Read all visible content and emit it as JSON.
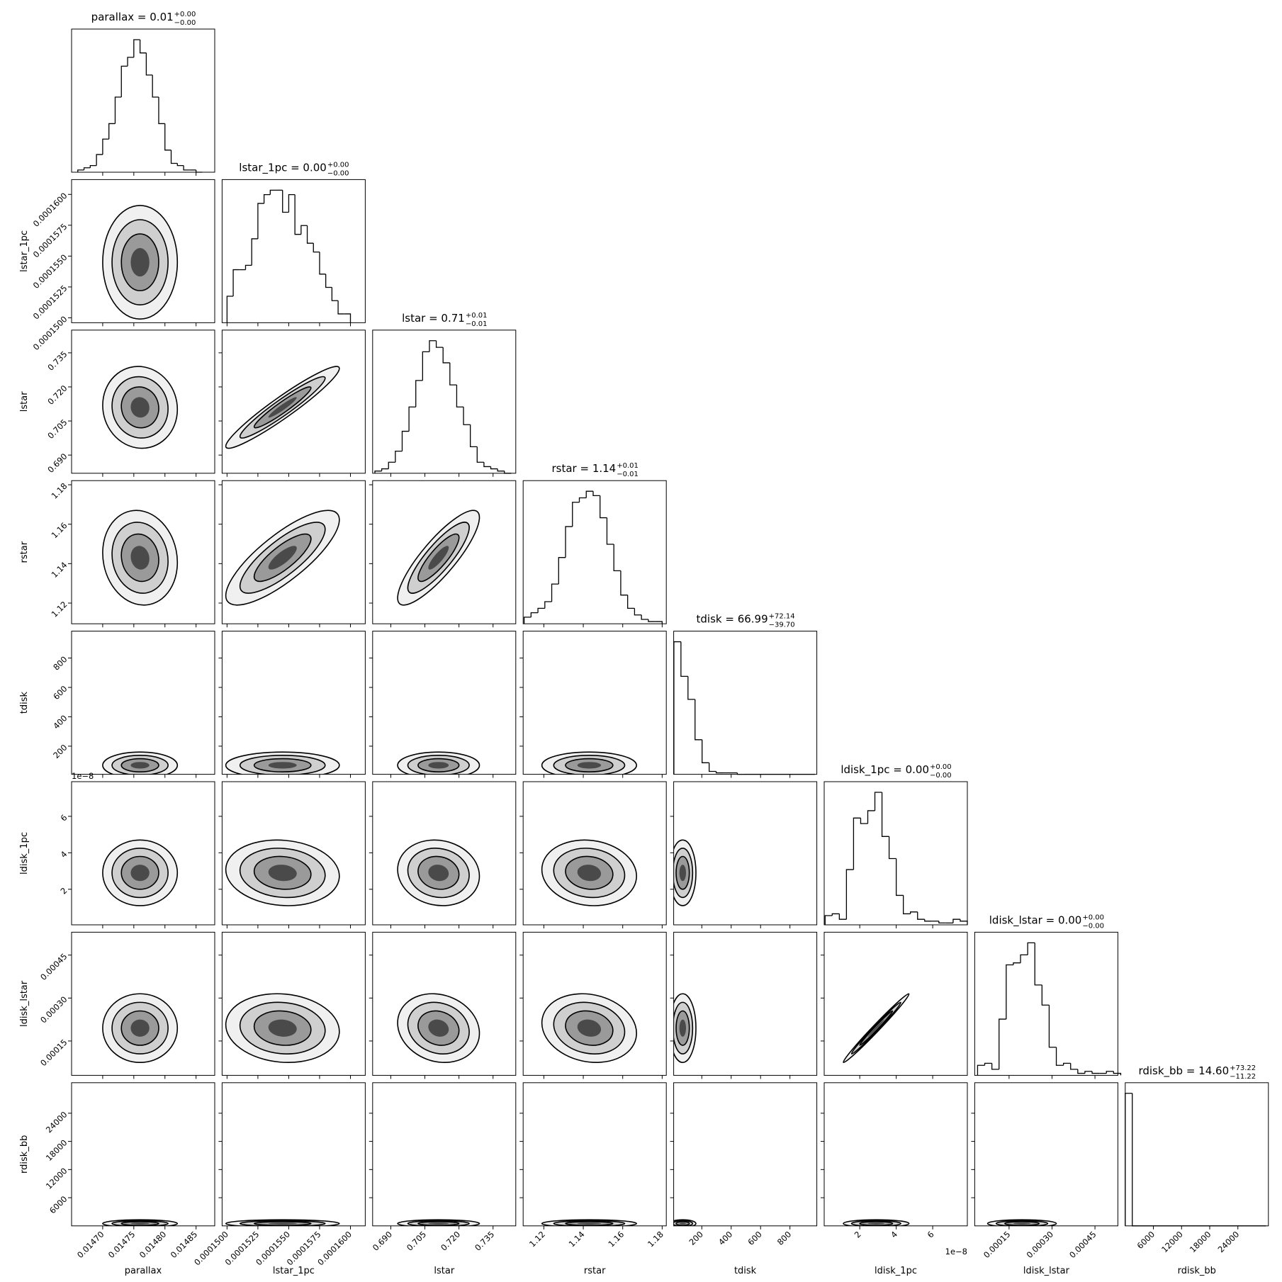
{
  "chart_data": {
    "type": "corner",
    "color": "#000000",
    "params": [
      {
        "name": "parallax",
        "title": {
          "text": "parallax = 0.01",
          "plus": "+0.00",
          "minus": "−0.00"
        },
        "lim": [
          0.01465,
          0.01488
        ],
        "ticks": [
          {
            "value": 0.0147,
            "label": "0.01470"
          },
          0.01475,
          {
            "value": 0.0148,
            "label": "0.01480"
          },
          0.01485
        ],
        "bins": [
          0.01466,
          0.01467,
          0.01468,
          0.01469,
          0.0147,
          0.01471,
          0.01472,
          0.01473,
          0.01474,
          0.01475,
          0.01476,
          0.01477,
          0.01478,
          0.01479,
          0.0148,
          0.01481,
          0.01482,
          0.01483,
          0.01484,
          0.01485,
          0.01486
        ],
        "counts": [
          1,
          2,
          3,
          8,
          15,
          22,
          34,
          48,
          52,
          60,
          54,
          44,
          34,
          22,
          10,
          4,
          3,
          1,
          1,
          0
        ],
        "mean": 0.01476,
        "std": 3e-05
      },
      {
        "name": "lstar_1pc",
        "title": {
          "text": "lstar_1pc = 0.00",
          "plus": "+0.00",
          "minus": "−0.00"
        },
        "lim": [
          0.0001496,
          0.0001612
        ],
        "ticks": [
          {
            "value": 0.00015,
            "label": "0.0001500"
          },
          0.0001525,
          {
            "value": 0.000155,
            "label": "0.0001550"
          },
          0.0001575,
          {
            "value": 0.00016,
            "label": "0.0001600"
          }
        ],
        "bins": [
          0.00015,
          0.0001505,
          0.000151,
          0.0001515,
          0.000152,
          0.0001525,
          0.000153,
          0.0001535,
          0.000154,
          0.0001545,
          0.000155,
          0.0001555,
          0.000156,
          0.0001565,
          0.000157,
          0.0001575,
          0.000158,
          0.0001585,
          0.000159,
          0.0001595,
          0.00016
        ],
        "counts": [
          6,
          12,
          12,
          13,
          19,
          27,
          29,
          30,
          30,
          25,
          29,
          20,
          22,
          18,
          16,
          11,
          8,
          5,
          2,
          2
        ],
        "mean": 0.0001545,
        "std": 2.3e-06
      },
      {
        "name": "lstar",
        "title": {
          "text": "lstar = 0.71",
          "plus": "+0.01",
          "minus": "−0.01"
        },
        "lim": [
          0.682,
          0.745
        ],
        "ticks": [
          {
            "value": 0.69,
            "label": "0.690"
          },
          0.705,
          {
            "value": 0.72,
            "label": "0.720"
          },
          0.735
        ],
        "bins": [
          0.683,
          0.686,
          0.689,
          0.692,
          0.695,
          0.698,
          0.701,
          0.704,
          0.707,
          0.71,
          0.713,
          0.716,
          0.719,
          0.722,
          0.725,
          0.728,
          0.731,
          0.734,
          0.737,
          0.74,
          0.743
        ],
        "counts": [
          1,
          2,
          5,
          10,
          19,
          30,
          42,
          55,
          60,
          57,
          50,
          40,
          30,
          22,
          12,
          5,
          3,
          2,
          1,
          0
        ],
        "mean": 0.711,
        "std": 0.009
      },
      {
        "name": "rstar",
        "title": {
          "text": "rstar = 1.14",
          "plus": "+0.01",
          "minus": "−0.01"
        },
        "lim": [
          1.1095,
          1.1821
        ],
        "ticks": [
          1.12,
          1.14,
          1.16,
          1.18
        ],
        "bins": [
          1.11,
          1.1135,
          1.117,
          1.1205,
          1.124,
          1.1275,
          1.131,
          1.1345,
          1.138,
          1.1415,
          1.145,
          1.1485,
          1.152,
          1.1555,
          1.159,
          1.1625,
          1.166,
          1.1695,
          1.173,
          1.1765,
          1.18
        ],
        "counts": [
          3,
          5,
          7,
          10,
          18,
          30,
          44,
          55,
          57,
          60,
          58,
          48,
          36,
          24,
          13,
          7,
          4,
          2,
          1,
          1
        ],
        "mean": 1.143,
        "std": 0.012
      },
      {
        "name": "tdisk",
        "title": {
          "text": "tdisk = 66.99",
          "plus": "+72.14",
          "minus": "−39.70"
        },
        "lim": [
          8.5,
          983
        ],
        "ticks": [
          200,
          400,
          600,
          800
        ],
        "bins": [
          10,
          58,
          106,
          154,
          202,
          250,
          298,
          346,
          394,
          442,
          490,
          538,
          586,
          634,
          682,
          730,
          778,
          826,
          874,
          922,
          970
        ],
        "counts": [
          92,
          68,
          52,
          24,
          8,
          2,
          1,
          1,
          1,
          0,
          0,
          0,
          0,
          0,
          0,
          0,
          0,
          0,
          0,
          0
        ],
        "mean": 70,
        "std": 45
      },
      {
        "name": "ldisk_1pc",
        "title": {
          "text": "ldisk_1pc = 0.00",
          "plus": "+0.00",
          "minus": "−0.00"
        },
        "lim": [
          0.05,
          7.9
        ],
        "offset_text": "1e−8",
        "ticks": [
          2,
          4,
          6
        ],
        "bins": [
          0.1,
          0.49,
          0.88,
          1.27,
          1.66,
          2.05,
          2.44,
          2.83,
          3.22,
          3.61,
          4,
          4.39,
          4.78,
          5.17,
          5.56,
          5.95,
          6.34,
          6.73,
          7.12,
          7.51,
          7.9
        ],
        "counts": [
          5,
          6,
          3,
          30,
          58,
          55,
          62,
          72,
          48,
          36,
          16,
          6,
          7,
          3,
          2,
          2,
          1,
          1,
          3,
          2
        ],
        "mean": 2.9,
        "std": 0.9
      },
      {
        "name": "ldisk_lstar",
        "title": {
          "text": "ldisk_lstar = 0.00",
          "plus": "+0.00",
          "minus": "−0.00"
        },
        "lim": [
          3e-05,
          0.00053
        ],
        "ticks": [
          0.00015,
          {
            "value": 0.0003,
            "label": "0.00030"
          },
          0.00045
        ],
        "bins": [
          4e-05,
          6.5e-05,
          9e-05,
          0.000115,
          0.00014,
          0.000165,
          0.00019,
          0.000215,
          0.00024,
          0.000265,
          0.00029,
          0.000315,
          0.00034,
          0.000365,
          0.00039,
          0.000415,
          0.00044,
          0.000465,
          0.00049,
          0.000515,
          0.00054
        ],
        "counts": [
          5,
          6,
          3,
          28,
          55,
          56,
          60,
          66,
          45,
          35,
          14,
          5,
          6,
          3,
          1,
          2,
          1,
          1,
          2,
          1
        ],
        "mean": 0.000195,
        "std": 6e-05
      },
      {
        "name": "rdisk_bb",
        "title": {
          "text": "rdisk_bb = 14.60",
          "plus": "+73.22",
          "minus": "−11.22"
        },
        "lim": [
          0,
          30500
        ],
        "ticks": [
          6000,
          12000,
          18000,
          24000
        ],
        "bins": [
          0,
          1500,
          3000,
          4500,
          6000,
          7500,
          9000,
          10500,
          12000,
          13500,
          15000,
          16500,
          18000,
          19500,
          21000,
          22500,
          24000,
          25500,
          27000,
          28500,
          30000
        ],
        "counts": [
          100,
          0,
          0,
          0,
          0,
          0,
          0,
          0,
          0,
          0,
          0,
          0,
          0,
          0,
          0,
          0,
          0,
          0,
          0,
          0
        ],
        "mean": 500,
        "std": 400
      }
    ],
    "correlations": [
      [
        0
      ],
      [
        -0.05,
        0.95
      ],
      [
        -0.1,
        0.8,
        0.85
      ],
      [
        0,
        0,
        0,
        0
      ],
      [
        0,
        -0.1,
        -0.1,
        -0.1,
        0
      ],
      [
        0,
        -0.1,
        -0.15,
        -0.15,
        0,
        0.99
      ],
      [
        0,
        0,
        0,
        0,
        0,
        0,
        0
      ]
    ]
  }
}
